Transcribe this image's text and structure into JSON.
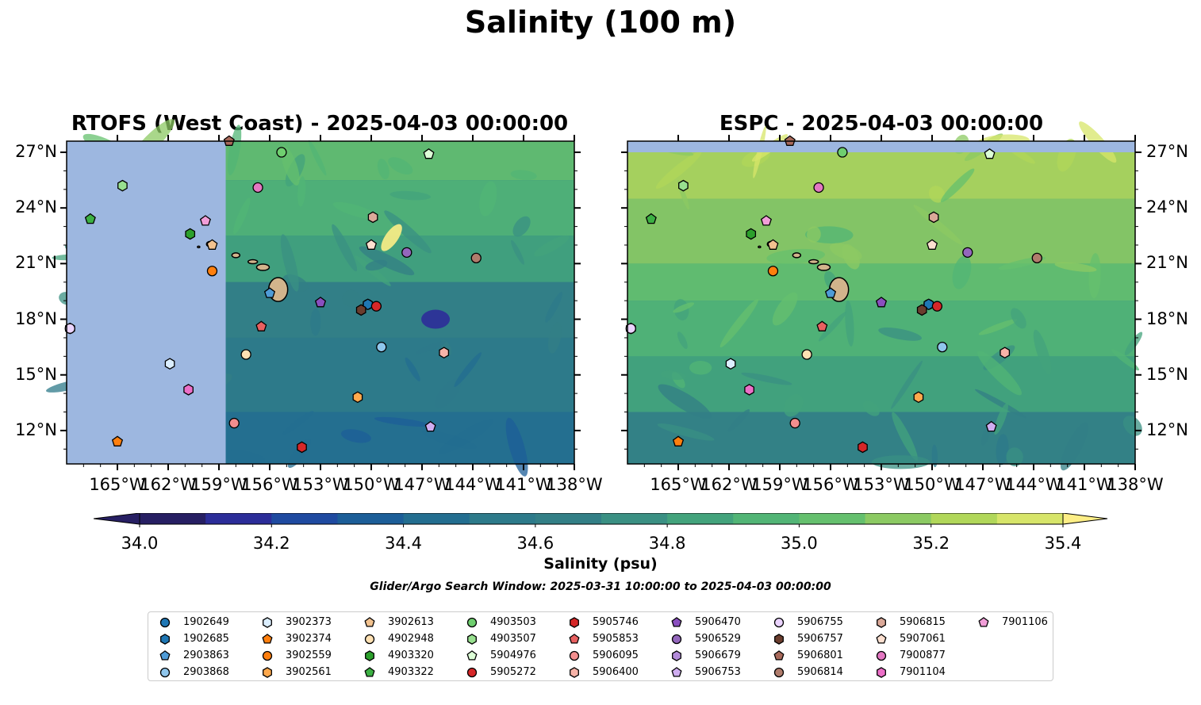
{
  "title": "Salinity (100 m)",
  "panels": [
    {
      "title": "RTOFS (West Coast) - 2025-04-03 00:00:00",
      "model": "RTOFS",
      "side": "left"
    },
    {
      "title": "ESPC - 2025-04-03 00:00:00",
      "model": "ESPC",
      "side": "right"
    }
  ],
  "map_extent": {
    "lon": [
      -168,
      -138
    ],
    "lat": [
      10.2,
      27.6
    ]
  },
  "lon_ticks": [
    -165,
    -162,
    -159,
    -156,
    -153,
    -150,
    -147,
    -144,
    -141,
    -138
  ],
  "lon_tick_labels": [
    "165°W",
    "162°W",
    "159°W",
    "156°W",
    "153°W",
    "150°W",
    "147°W",
    "144°W",
    "141°W",
    "138°W"
  ],
  "lat_ticks": [
    12,
    15,
    18,
    21,
    24,
    27
  ],
  "lat_tick_labels": [
    "12°N",
    "15°N",
    "18°N",
    "21°N",
    "24°N",
    "27°N"
  ],
  "rtofs_domain_west_edge_lon": -158.6,
  "colors": {
    "land": "#d2b48c",
    "no_data": "#9db7e0",
    "colormap": [
      "#271f63",
      "#2c2d99",
      "#1f4aa0",
      "#1c5e98",
      "#236e90",
      "#2d7a8a",
      "#337f86",
      "#3a9083",
      "#43a37c",
      "#52b576",
      "#65c06e",
      "#8cca63",
      "#b1d75a",
      "#d7e56a",
      "#fdee86"
    ]
  },
  "colorbar": {
    "label": "Salinity (psu)",
    "min": 34.0,
    "max": 35.4,
    "step": 0.1,
    "tick_values": [
      34.0,
      34.2,
      34.4,
      34.6,
      34.8,
      35.0,
      35.2,
      35.4
    ],
    "tick_labels": [
      "34.0",
      "34.2",
      "34.4",
      "34.6",
      "34.8",
      "35.0",
      "35.2",
      "35.4"
    ],
    "extend": "both"
  },
  "search_window": "Glider/Argo Search Window: 2025-03-31 10:00:00 to 2025-04-03 00:00:00",
  "floats": [
    {
      "id": "1902649",
      "marker": "circle",
      "color": "#1f77b4",
      "lon": -150.2,
      "lat": 18.8
    },
    {
      "id": "1902685",
      "marker": "hexagon",
      "color": "#1f77b4",
      "lon": -150.2,
      "lat": 18.8
    },
    {
      "id": "2903863",
      "marker": "pentagon",
      "color": "#4f9bd6",
      "lon": -156.0,
      "lat": 19.4
    },
    {
      "id": "2903868",
      "marker": "circle",
      "color": "#8fc6ec",
      "lon": -149.4,
      "lat": 16.5
    },
    {
      "id": "3902373",
      "marker": "hexagon",
      "color": "#dbeeff",
      "lon": -161.9,
      "lat": 15.6
    },
    {
      "id": "3902374",
      "marker": "pentagon",
      "color": "#ff7f0e",
      "lon": -165.0,
      "lat": 11.4
    },
    {
      "id": "3902559",
      "marker": "circle",
      "color": "#ff7f0e",
      "lon": -159.4,
      "lat": 20.6
    },
    {
      "id": "3902561",
      "marker": "hexagon",
      "color": "#ffa94d",
      "lon": -150.8,
      "lat": 13.8
    },
    {
      "id": "3902613",
      "marker": "pentagon",
      "color": "#f2c28f",
      "lon": -159.4,
      "lat": 22.0
    },
    {
      "id": "4902948",
      "marker": "circle",
      "color": "#ffe1b3",
      "lon": -157.4,
      "lat": 16.1
    },
    {
      "id": "4903320",
      "marker": "hexagon",
      "color": "#2ca02c",
      "lon": -160.7,
      "lat": 22.6
    },
    {
      "id": "4903322",
      "marker": "pentagon",
      "color": "#3cb043",
      "lon": -166.6,
      "lat": 23.4
    },
    {
      "id": "4903503",
      "marker": "circle",
      "color": "#6fcf6f",
      "lon": -155.3,
      "lat": 27.0
    },
    {
      "id": "4903507",
      "marker": "hexagon",
      "color": "#98e08f",
      "lon": -164.7,
      "lat": 25.2
    },
    {
      "id": "5904976",
      "marker": "pentagon",
      "color": "#ddffd7",
      "lon": -146.6,
      "lat": 26.9
    },
    {
      "id": "5905272",
      "marker": "circle",
      "color": "#d62728",
      "lon": -149.7,
      "lat": 18.7
    },
    {
      "id": "5905746",
      "marker": "hexagon",
      "color": "#d62728",
      "lon": -154.1,
      "lat": 11.1
    },
    {
      "id": "5905853",
      "marker": "pentagon",
      "color": "#e86060",
      "lon": -156.5,
      "lat": 17.6
    },
    {
      "id": "5906095",
      "marker": "circle",
      "color": "#f28e8e",
      "lon": -158.1,
      "lat": 12.4
    },
    {
      "id": "5906400",
      "marker": "hexagon",
      "color": "#f7b3a8",
      "lon": -145.7,
      "lat": 16.2
    },
    {
      "id": "5906470",
      "marker": "pentagon",
      "color": "#8a4fbf",
      "lon": -153.0,
      "lat": 18.9
    },
    {
      "id": "5906529",
      "marker": "circle",
      "color": "#9467bd",
      "lon": -147.9,
      "lat": 21.6
    },
    {
      "id": "5906679",
      "marker": "hexagon",
      "color": "#b38bd9",
      "lon": -167.8,
      "lat": 17.5
    },
    {
      "id": "5906753",
      "marker": "pentagon",
      "color": "#cfadf0",
      "lon": -146.5,
      "lat": 12.2
    },
    {
      "id": "5906755",
      "marker": "circle",
      "color": "#ebd4ff",
      "lon": -167.8,
      "lat": 17.5
    },
    {
      "id": "5906757",
      "marker": "hexagon",
      "color": "#6b3d2e",
      "lon": -150.6,
      "lat": 18.5
    },
    {
      "id": "5906801",
      "marker": "pentagon",
      "color": "#a8695a",
      "lon": -158.4,
      "lat": 27.6
    },
    {
      "id": "5906814",
      "marker": "circle",
      "color": "#b07c6c",
      "lon": -143.8,
      "lat": 21.3
    },
    {
      "id": "5906815",
      "marker": "hexagon",
      "color": "#dba999",
      "lon": -149.9,
      "lat": 23.5
    },
    {
      "id": "5907061",
      "marker": "pentagon",
      "color": "#fde0d0",
      "lon": -150.0,
      "lat": 22.0
    },
    {
      "id": "7900877",
      "marker": "circle",
      "color": "#e377c2",
      "lon": -156.7,
      "lat": 25.1
    },
    {
      "id": "7901104",
      "marker": "hexagon",
      "color": "#ec6fc8",
      "lon": -160.8,
      "lat": 14.2
    },
    {
      "id": "7901106",
      "marker": "pentagon",
      "color": "#f19ed8",
      "lon": -159.8,
      "lat": 23.3
    }
  ]
}
